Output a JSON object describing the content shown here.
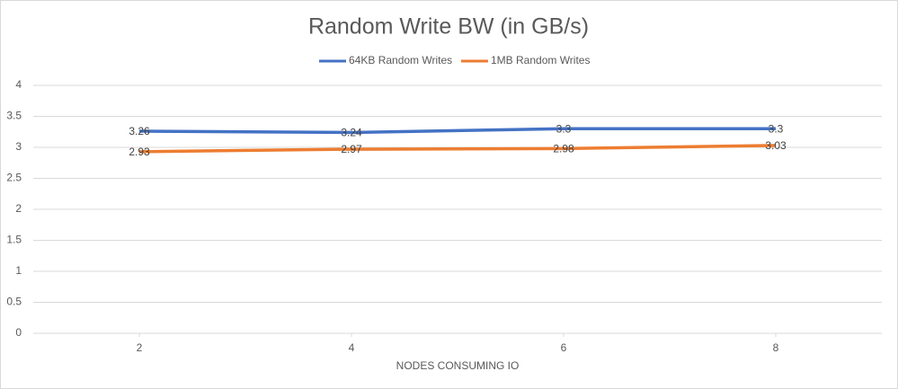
{
  "chart_data": {
    "type": "line",
    "title": "Random Write BW (in GB/s)",
    "x_label": "NODES CONSUMING IO",
    "x": [
      2,
      4,
      6,
      8
    ],
    "xlim": [
      1,
      9
    ],
    "xticks": [
      2,
      4,
      6,
      8
    ],
    "ylim": [
      0,
      4
    ],
    "yticks": [
      0,
      0.5,
      1,
      1.5,
      2,
      2.5,
      3,
      3.5,
      4
    ],
    "grid": true,
    "series": [
      {
        "name": "64KB Random Writes",
        "color": "#4472c4",
        "values": [
          3.26,
          3.24,
          3.3,
          3.3
        ]
      },
      {
        "name": "1MB Random Writes",
        "color": "#ed7d31",
        "values": [
          2.93,
          2.97,
          2.98,
          3.03
        ]
      }
    ]
  }
}
